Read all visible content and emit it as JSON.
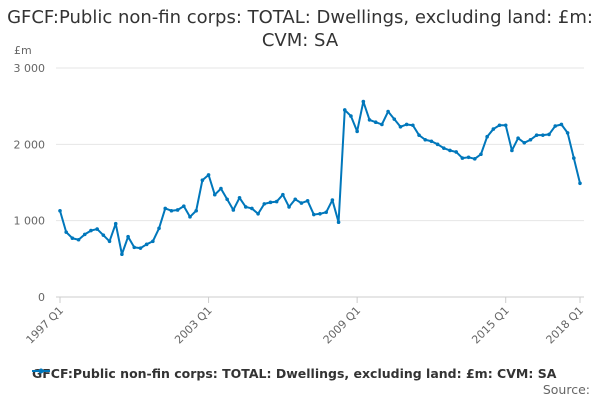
{
  "chart_data": {
    "type": "line",
    "title": "GFCF:Public non-fin corps: TOTAL: Dwellings, excluding land: £m: CVM: SA",
    "ylabel": "£m",
    "ylim": [
      0,
      3000
    ],
    "yticks": [
      0,
      1000,
      2000,
      3000
    ],
    "ytick_labels": [
      "0",
      "1 000",
      "2 000",
      "3 000"
    ],
    "xtick_labels": [
      {
        "label": "1997 Q1",
        "index": 0
      },
      {
        "label": "2003 Q1",
        "index": 24
      },
      {
        "label": "2009 Q1",
        "index": 48
      },
      {
        "label": "2015 Q1",
        "index": 72
      },
      {
        "label": "2018 Q1",
        "index": 84
      }
    ],
    "x_start": "1997 Q1",
    "x_end": "2018 Q1",
    "grid": true,
    "color": "#0077bb",
    "series": [
      {
        "name": "GFCF:Public non-fin corps: TOTAL: Dwellings, excluding land: £m: CVM: SA",
        "values": [
          1130,
          850,
          770,
          750,
          820,
          870,
          890,
          810,
          730,
          960,
          560,
          790,
          650,
          640,
          690,
          730,
          900,
          1160,
          1130,
          1140,
          1190,
          1050,
          1130,
          1530,
          1600,
          1340,
          1420,
          1280,
          1140,
          1300,
          1180,
          1160,
          1090,
          1220,
          1240,
          1250,
          1340,
          1180,
          1280,
          1230,
          1260,
          1080,
          1090,
          1110,
          1270,
          980,
          2450,
          2370,
          2170,
          2560,
          2320,
          2290,
          2260,
          2430,
          2330,
          2230,
          2260,
          2250,
          2120,
          2060,
          2040,
          2000,
          1950,
          1920,
          1900,
          1820,
          1830,
          1810,
          1870,
          2100,
          2200,
          2250,
          2250,
          1920,
          2080,
          2020,
          2060,
          2120,
          2120,
          2130,
          2240,
          2260,
          2150,
          1820,
          1490
        ]
      }
    ],
    "legend_position": "bottom"
  },
  "source_label": "Source:"
}
